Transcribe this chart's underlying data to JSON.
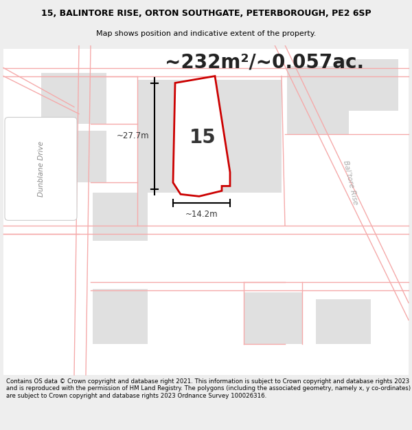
{
  "title_line1": "15, BALINTORE RISE, ORTON SOUTHGATE, PETERBOROUGH, PE2 6SP",
  "title_line2": "Map shows position and indicative extent of the property.",
  "area_text": "~232m²/~0.057ac.",
  "property_number": "15",
  "dim_width": "~14.2m",
  "dim_height": "~27.7m",
  "street_label_left": "Dunblane Drive",
  "street_label_right": "Bal’tore Rise",
  "footer_text": "Contains OS data © Crown copyright and database right 2021. This information is subject to Crown copyright and database rights 2023 and is reproduced with the permission of HM Land Registry. The polygons (including the associated geometry, namely x, y co-ordinates) are subject to Crown copyright and database rights 2023 Ordnance Survey 100026316.",
  "bg_color": "#eeeeee",
  "map_bg": "#ffffff",
  "plot_fill": "#ffffff",
  "plot_outline": "#cc0000",
  "road_line_color": "#f5aaaa",
  "gray_fill": "#e0e0e0",
  "title_fontsize": 9.0,
  "subtitle_fontsize": 8.0,
  "area_fontsize": 20,
  "number_fontsize": 20,
  "footer_fontsize": 6.2,
  "dim_fontsize": 8.5,
  "street_fontsize": 7.5
}
